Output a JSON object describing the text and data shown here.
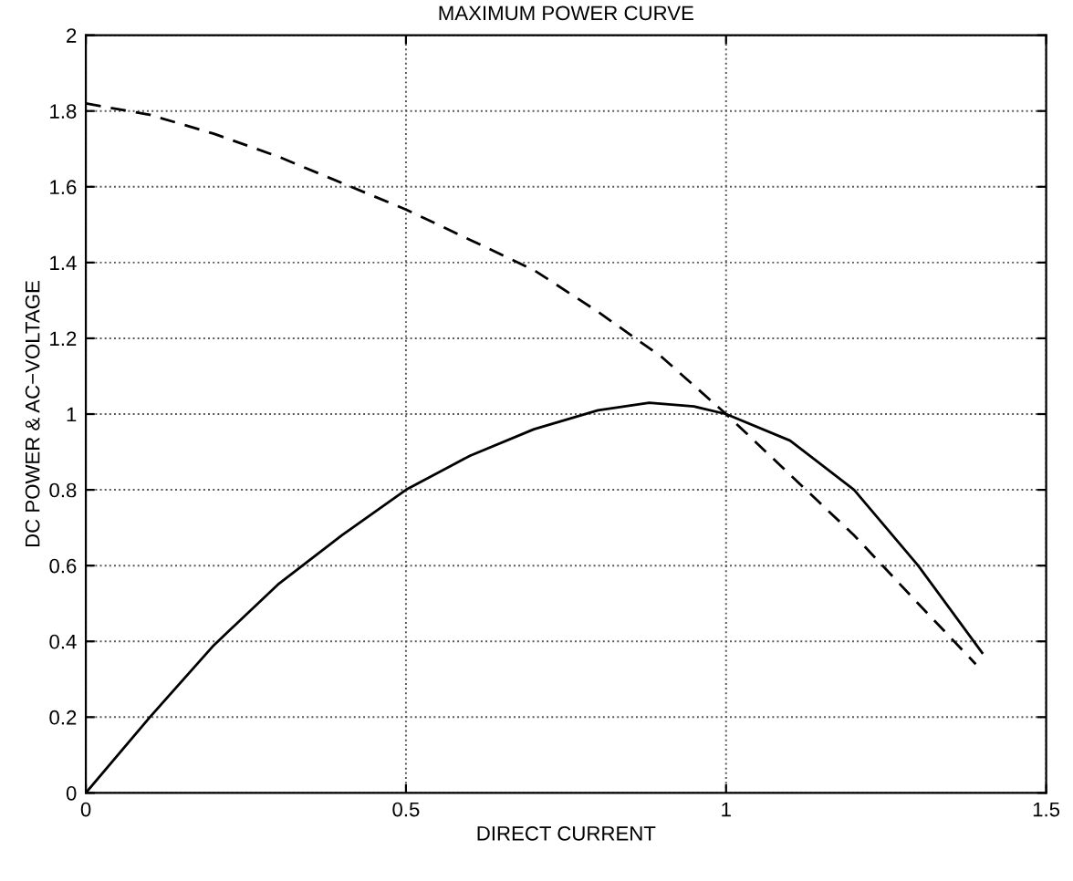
{
  "chart_data": {
    "type": "line",
    "title": "MAXIMUM POWER CURVE",
    "xlabel": "DIRECT CURRENT",
    "ylabel": "DC POWER & AC−VOLTAGE",
    "xlim": [
      0,
      1.5
    ],
    "xticks": [
      0,
      0.5,
      1,
      1.5
    ],
    "ylim": [
      0,
      2
    ],
    "yticks": [
      0,
      0.2,
      0.4,
      0.6,
      0.8,
      1,
      1.2,
      1.4,
      1.6,
      1.8,
      2
    ],
    "grid": true,
    "legend": false,
    "series": [
      {
        "color": "#000000",
        "line_style": "solid",
        "x": [
          0,
          0.1,
          0.2,
          0.3,
          0.4,
          0.5,
          0.6,
          0.7,
          0.8,
          0.88,
          0.95,
          1.0,
          1.1,
          1.2,
          1.3,
          1.4
        ],
        "values": [
          0,
          0.2,
          0.39,
          0.55,
          0.68,
          0.8,
          0.89,
          0.96,
          1.01,
          1.03,
          1.02,
          1.0,
          0.93,
          0.8,
          0.6,
          0.37
        ]
      },
      {
        "color": "#000000",
        "line_style": "dashed",
        "x": [
          0,
          0.1,
          0.2,
          0.3,
          0.4,
          0.5,
          0.6,
          0.7,
          0.8,
          0.9,
          1.0,
          1.1,
          1.2,
          1.3,
          1.39
        ],
        "values": [
          1.82,
          1.79,
          1.74,
          1.68,
          1.61,
          1.54,
          1.46,
          1.38,
          1.27,
          1.15,
          1.0,
          0.84,
          0.68,
          0.5,
          0.34
        ]
      }
    ]
  }
}
